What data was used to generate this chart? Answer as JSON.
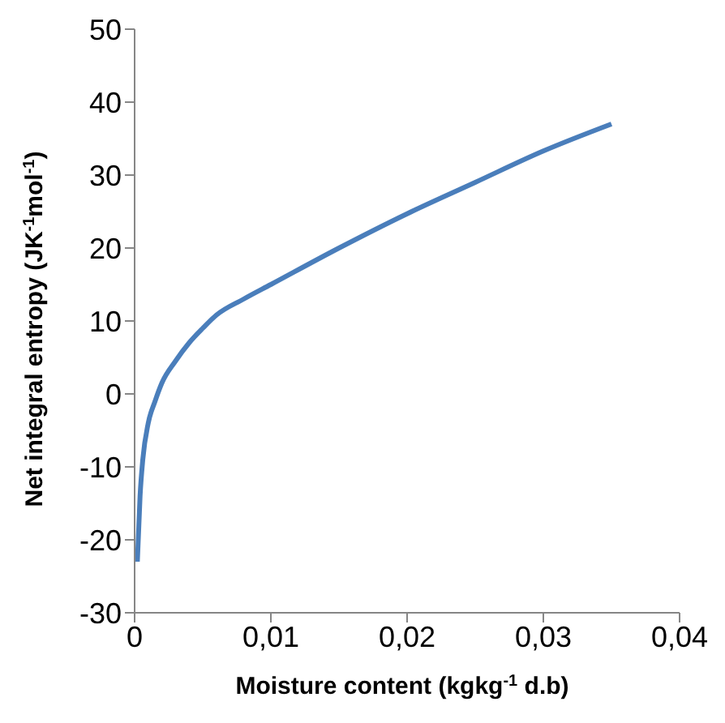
{
  "chart_data": {
    "type": "line",
    "xlabel": "Moisture content (kgkg$^{-1}$ d.b)",
    "ylabel": "Net integral entropy (JK$^{-1}$mol$^{-1}$)",
    "x": [
      0.0002,
      0.0004,
      0.0006,
      0.001,
      0.0015,
      0.002,
      0.003,
      0.004,
      0.005,
      0.006,
      0.008,
      0.01,
      0.015,
      0.02,
      0.025,
      0.03,
      0.035
    ],
    "series": [
      {
        "color": "#4a7ebb",
        "values": [
          -23,
          -14,
          -9,
          -4,
          -1,
          1.5,
          4.5,
          7,
          9,
          10.8,
          13,
          15,
          20,
          24.7,
          29,
          33.3,
          37
        ]
      }
    ],
    "xlim": [
      0,
      0.04
    ],
    "xticks": [
      0,
      {
        "value": 0.01,
        "label": "0,01"
      },
      {
        "value": 0.02,
        "label": "0,02"
      },
      {
        "value": 0.03,
        "label": "0,03"
      },
      {
        "value": 0.04,
        "label": "0,04"
      }
    ],
    "ylim": [
      -30,
      50
    ],
    "yticks": [
      -30,
      -20,
      -10,
      0,
      10,
      20,
      30,
      40,
      50
    ],
    "grid": false,
    "legend": false,
    "marker": "none",
    "line_style": "solid"
  }
}
